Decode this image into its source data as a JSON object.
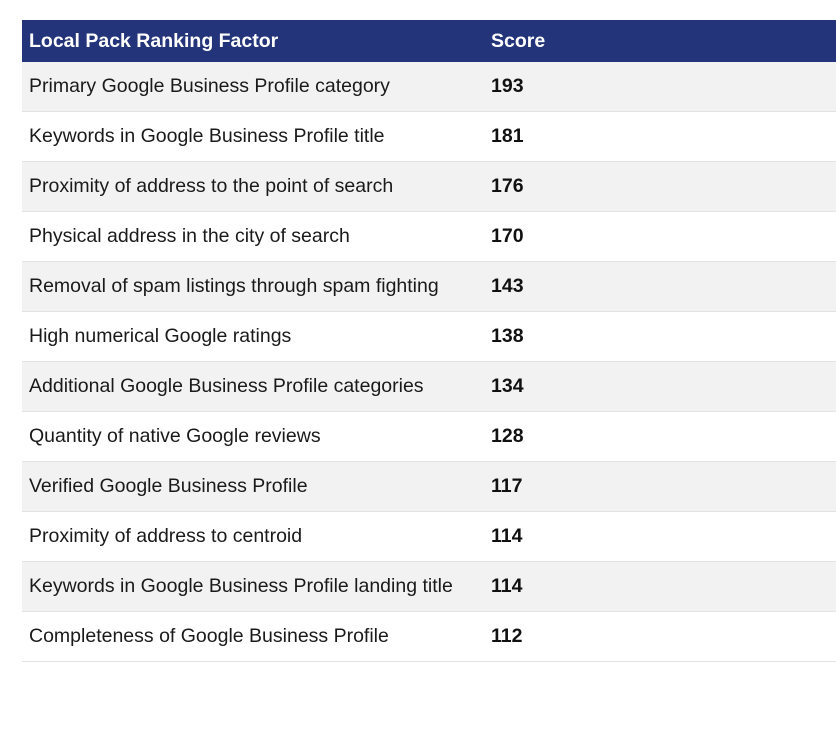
{
  "table": {
    "headers": {
      "factor": "Local Pack Ranking Factor",
      "score": "Score"
    },
    "rows": [
      {
        "factor": "Primary Google Business Profile category",
        "score": "193"
      },
      {
        "factor": "Keywords in Google Business Profile title",
        "score": "181"
      },
      {
        "factor": "Proximity of address to the point of search",
        "score": "176"
      },
      {
        "factor": "Physical address in the city of search",
        "score": "170"
      },
      {
        "factor": "Removal of spam listings through spam fighting",
        "score": "143"
      },
      {
        "factor": "High numerical Google ratings",
        "score": "138"
      },
      {
        "factor": "Additional Google Business Profile categories",
        "score": "134"
      },
      {
        "factor": "Quantity of native Google reviews",
        "score": "128"
      },
      {
        "factor": "Verified Google Business Profile",
        "score": "117"
      },
      {
        "factor": "Proximity of address to centroid",
        "score": "114"
      },
      {
        "factor": "Keywords in Google Business Profile landing title",
        "score": "114"
      },
      {
        "factor": "Completeness of Google Business Profile",
        "score": "112"
      }
    ]
  },
  "colors": {
    "header_bg": "#24347a",
    "header_text": "#ffffff",
    "row_alt_bg": "#f2f2f2"
  }
}
